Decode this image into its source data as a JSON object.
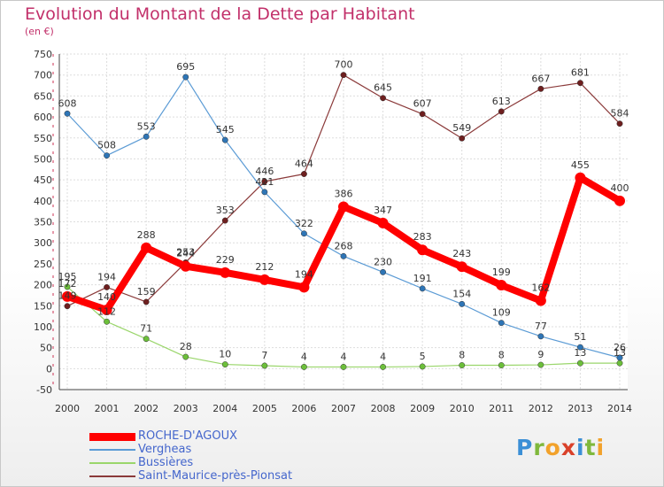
{
  "title": "Evolution du Montant de la Dette par Habitant",
  "subtitle": "(en €)",
  "logo": {
    "text": "Proxiti",
    "letters": [
      {
        "ch": "P",
        "color": "#3b8fd6"
      },
      {
        "ch": "r",
        "color": "#7fb83c"
      },
      {
        "ch": "o",
        "color": "#f2a22b"
      },
      {
        "ch": "x",
        "color": "#d9412a"
      },
      {
        "ch": "i",
        "color": "#3b8fd6"
      },
      {
        "ch": "t",
        "color": "#7fb83c"
      },
      {
        "ch": "i",
        "color": "#f2a22b"
      }
    ]
  },
  "chart_data": {
    "type": "line",
    "title": "Evolution du Montant de la Dette par Habitant",
    "subtitle": "(en €)",
    "x": [
      2000,
      2001,
      2002,
      2003,
      2004,
      2005,
      2006,
      2007,
      2008,
      2009,
      2010,
      2011,
      2012,
      2013,
      2014
    ],
    "ylim": [
      -50,
      750
    ],
    "yticks": [
      -50,
      0,
      50,
      100,
      150,
      200,
      250,
      300,
      350,
      400,
      450,
      500,
      550,
      600,
      650,
      700,
      750
    ],
    "grid": true,
    "legend_position": "bottom-left",
    "series": [
      {
        "name": "ROCHE-D'AGOUX",
        "color": "#ff0000",
        "marker_color": "#ff0000",
        "values": [
          172,
          140,
          288,
          244,
          229,
          212,
          194,
          386,
          347,
          283,
          243,
          199,
          162,
          455,
          400
        ]
      },
      {
        "name": "Vergheas",
        "color": "#5b9bd5",
        "marker_color": "#2e75b6",
        "values": [
          608,
          508,
          553,
          695,
          545,
          421,
          322,
          268,
          230,
          191,
          154,
          109,
          77,
          51,
          26
        ]
      },
      {
        "name": "Bussières",
        "color": "#9ad66b",
        "marker_color": "#6cbf3a",
        "values": [
          195,
          112,
          71,
          28,
          10,
          7,
          4,
          4,
          4,
          5,
          8,
          8,
          9,
          13,
          13
        ]
      },
      {
        "name": "Saint-Maurice-près-Pionsat",
        "color": "#8b3a3a",
        "marker_color": "#6e1f1f",
        "values": [
          149,
          194,
          159,
          253,
          353,
          446,
          464,
          700,
          645,
          607,
          549,
          613,
          667,
          681,
          584
        ]
      }
    ]
  }
}
